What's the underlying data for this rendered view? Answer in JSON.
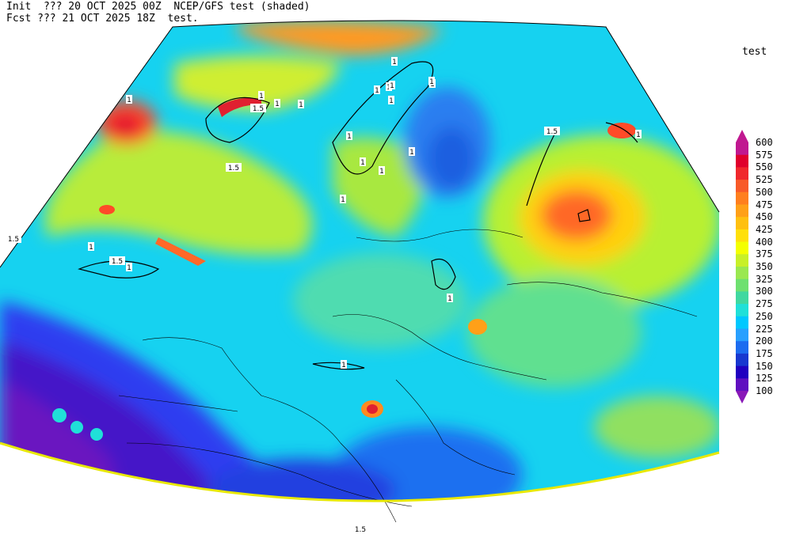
{
  "header": {
    "line1": "Init  ??? 20 OCT 2025 00Z  NCEP/GFS test (shaded)",
    "line2": "Fcst ??? 21 OCT 2025 18Z  test."
  },
  "legend": {
    "title": "test",
    "levels": [
      "600",
      "575",
      "550",
      "525",
      "500",
      "475",
      "450",
      "425",
      "400",
      "375",
      "350",
      "325",
      "300",
      "275",
      "250",
      "225",
      "200",
      "175",
      "150",
      "125",
      "100"
    ],
    "colors": [
      "#c01890",
      "#e0002c",
      "#f0282c",
      "#f85a28",
      "#ff7f1e",
      "#ffa018",
      "#ffc010",
      "#ffe00a",
      "#f4ff00",
      "#c8f028",
      "#9ae850",
      "#6ee070",
      "#40d8a0",
      "#20e0d8",
      "#00c8ff",
      "#28a0ff",
      "#1c6cf0",
      "#1838d0",
      "#2000c0",
      "#6010c0",
      "#8818b8"
    ]
  },
  "map": {
    "contour_labels": [
      "1",
      "1.5",
      "1",
      "1",
      "1.5",
      "1",
      "1",
      "1.5",
      "1",
      "1",
      "1",
      "1",
      "1",
      "1",
      "1",
      "1",
      "1",
      "1.5",
      "1",
      "1",
      "1",
      "1.5",
      "1",
      "1",
      "1",
      "1",
      "1.5"
    ]
  }
}
